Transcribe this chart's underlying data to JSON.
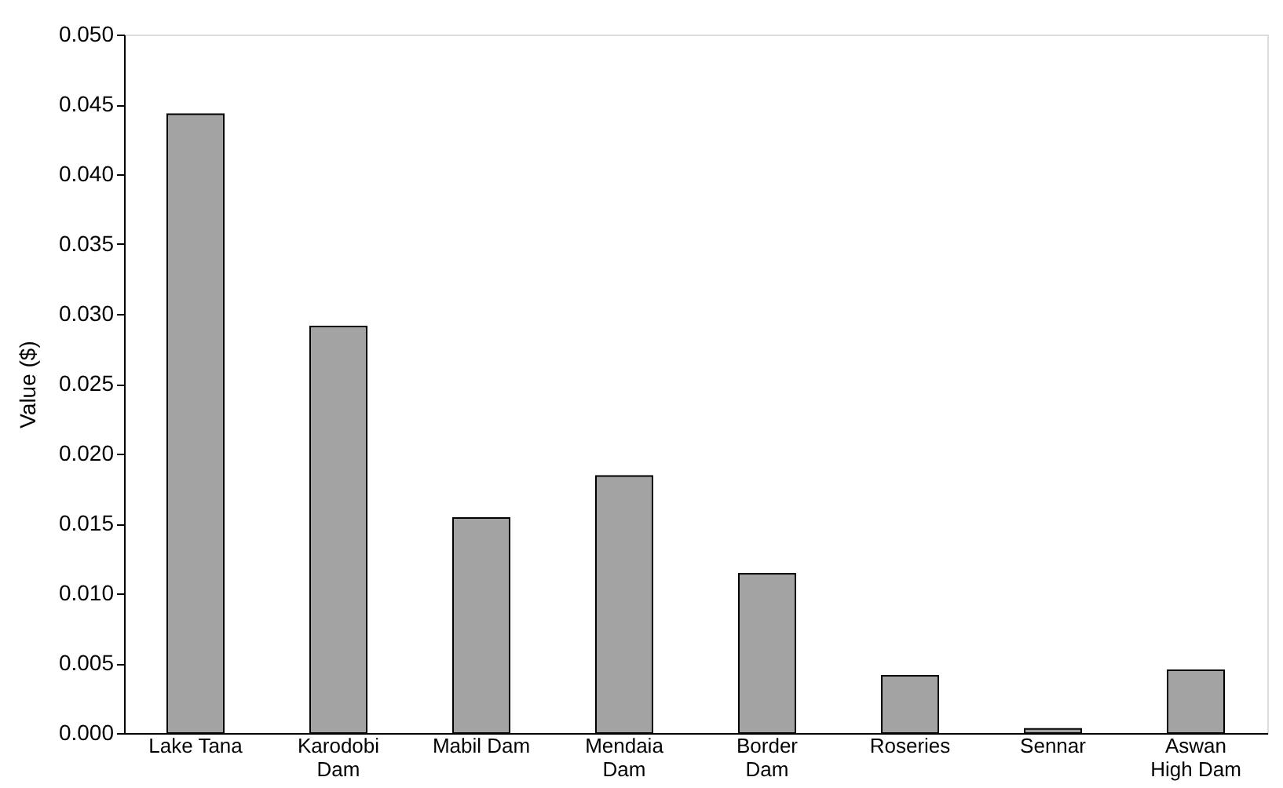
{
  "chart_data": {
    "type": "bar",
    "ylabel": "Value ($)",
    "categories": [
      "Lake Tana",
      "Karodobi Dam",
      "Mabil Dam",
      "Mendaia Dam",
      "Border Dam",
      "Roseries",
      "Sennar",
      "Aswan High Dam"
    ],
    "values": [
      0.0443,
      0.0291,
      0.0154,
      0.0184,
      0.0114,
      0.0041,
      0.0003,
      0.0045
    ],
    "color": "#a3a3a3",
    "ylim": [
      0,
      0.05
    ],
    "yticks": [
      {
        "value": 0,
        "label": "0.000"
      },
      {
        "value": 0.005,
        "label": "0.005"
      },
      {
        "value": 0.01,
        "label": "0.010"
      },
      {
        "value": 0.015,
        "label": "0.015"
      },
      {
        "value": 0.02,
        "label": "0.020"
      },
      {
        "value": 0.025,
        "label": "0.025"
      },
      {
        "value": 0.03,
        "label": "0.030"
      },
      {
        "value": 0.035,
        "label": "0.035"
      },
      {
        "value": 0.04,
        "label": "0.040"
      },
      {
        "value": 0.045,
        "label": "0.045"
      },
      {
        "value": 0.05,
        "label": "0.050"
      }
    ],
    "grid": false
  }
}
